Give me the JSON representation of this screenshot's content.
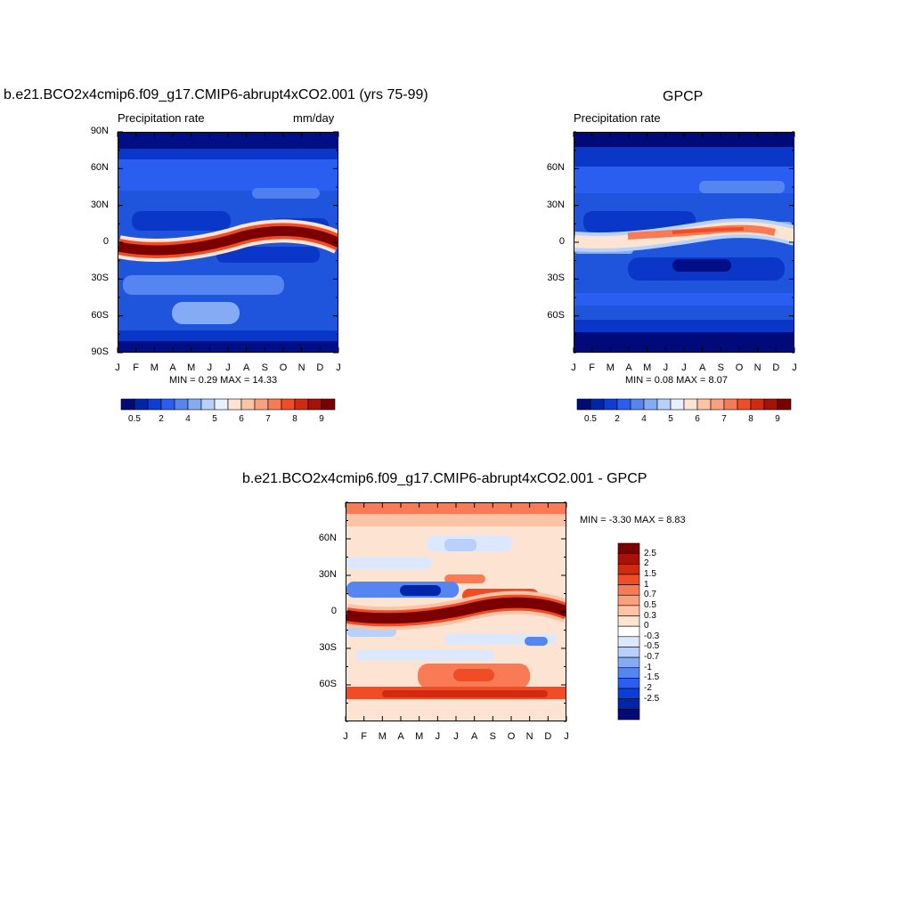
{
  "chart_data": [
    {
      "type": "heatmap",
      "title": "b.e21.BCO2x4cmip6.f09_g17.CMIP6-abrupt4xCO2.001 (yrs 75-99)",
      "left_subtitle": "Precipitation rate",
      "right_subtitle": "mm/day",
      "x_tick_labels": [
        "J",
        "F",
        "M",
        "A",
        "M",
        "J",
        "J",
        "A",
        "S",
        "O",
        "N",
        "D",
        "J"
      ],
      "y_tick_labels": [
        "90N",
        "60N",
        "30N",
        "0",
        "30S",
        "60S",
        "90S"
      ],
      "y_tick_values": [
        90,
        60,
        30,
        0,
        -30,
        -60,
        -90
      ],
      "ylim": [
        -90,
        90
      ],
      "min_max_text": "MIN =   0.29 MAX =  14.33",
      "min": 0.29,
      "max": 14.33,
      "colorbar_labels": [
        "0.5",
        "2",
        "4",
        "5",
        "6",
        "7",
        "8",
        "9"
      ]
    },
    {
      "type": "heatmap",
      "title": "GPCP",
      "left_subtitle": "Precipitation rate",
      "x_tick_labels": [
        "J",
        "F",
        "M",
        "A",
        "M",
        "J",
        "J",
        "A",
        "S",
        "O",
        "N",
        "D",
        "J"
      ],
      "y_tick_labels": [
        "60N",
        "30N",
        "0",
        "30S",
        "60S"
      ],
      "y_tick_values": [
        60,
        30,
        0,
        -30,
        -60
      ],
      "ylim": [
        -90,
        90
      ],
      "min_max_text": "MIN =   0.08 MAX =   8.07",
      "min": 0.08,
      "max": 8.07,
      "colorbar_labels": [
        "0.5",
        "2",
        "4",
        "5",
        "6",
        "7",
        "8",
        "9"
      ]
    },
    {
      "type": "heatmap",
      "title": "b.e21.BCO2x4cmip6.f09_g17.CMIP6-abrupt4xCO2.001 - GPCP",
      "x_tick_labels": [
        "J",
        "F",
        "M",
        "A",
        "M",
        "J",
        "J",
        "A",
        "S",
        "O",
        "N",
        "D",
        "J"
      ],
      "y_tick_labels": [
        "60N",
        "30N",
        "0",
        "30S",
        "60S"
      ],
      "y_tick_values": [
        60,
        30,
        0,
        -30,
        -60
      ],
      "ylim": [
        -90,
        90
      ],
      "min_max_text": "MIN =  -3.30 MAX =   8.83",
      "min": -3.3,
      "max": 8.83,
      "colorbar_labels": [
        "2.5",
        "2",
        "1.5",
        "1",
        "0.7",
        "0.5",
        "0.3",
        "0",
        "-0.3",
        "-0.5",
        "-0.7",
        "-1",
        "-1.5",
        "-2",
        "-2.5"
      ]
    }
  ],
  "colors": {
    "seq": [
      "#000a78",
      "#0025a8",
      "#0a3ed6",
      "#2a5ef0",
      "#5585f0",
      "#86abf5",
      "#b7d1fb",
      "#e7f1ff",
      "#fde3d2",
      "#fcc3a6",
      "#fba07e",
      "#f87b55",
      "#f04d26",
      "#d22a10",
      "#a71206",
      "#7a0000"
    ],
    "diff": [
      "#7a0000",
      "#a71206",
      "#d22a10",
      "#f04d26",
      "#f87b55",
      "#fba07e",
      "#fcc3a6",
      "#fde3d2",
      "#ffffff",
      "#dbe8ff",
      "#b7d1fb",
      "#86abf5",
      "#5585f0",
      "#2a5ef0",
      "#0a3ed6",
      "#0025a8",
      "#000a78"
    ]
  }
}
